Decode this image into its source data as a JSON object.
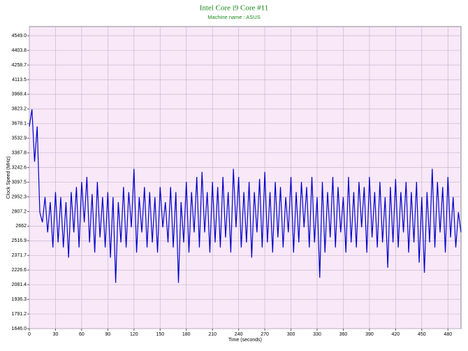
{
  "chart_data": {
    "type": "line",
    "title": "Intel Core i9 Core #11",
    "subtitle": "Machine name : ASUS",
    "x_label": "Time (seconds)",
    "y_label": "Clock Speed (MHz)",
    "xlim": [
      0,
      495
    ],
    "ylim": [
      1646,
      4640
    ],
    "xticks": [
      0,
      30,
      60,
      90,
      120,
      150,
      180,
      210,
      240,
      270,
      300,
      330,
      360,
      390,
      420,
      450,
      480
    ],
    "yticks": [
      {
        "value": 1646,
        "label": "1646.0"
      },
      1791.2,
      1936.3,
      2081.4,
      2226.6,
      2371.7,
      2516.9,
      2662,
      2807.2,
      2952.3,
      3097.5,
      3242.6,
      3387.8,
      3532.9,
      3678.1,
      3823.2,
      3968.4,
      4113.5,
      4258.7,
      4403.8,
      {
        "value": 4549,
        "label": "4549.0"
      }
    ],
    "grid": true,
    "x": [
      0,
      3,
      6,
      9,
      12,
      15,
      18,
      21,
      24,
      27,
      30,
      33,
      36,
      39,
      42,
      45,
      48,
      51,
      54,
      57,
      60,
      63,
      66,
      69,
      72,
      75,
      78,
      81,
      84,
      87,
      90,
      93,
      96,
      99,
      102,
      105,
      108,
      111,
      114,
      117,
      120,
      123,
      126,
      129,
      132,
      135,
      138,
      141,
      144,
      147,
      150,
      153,
      156,
      159,
      162,
      165,
      168,
      171,
      174,
      177,
      180,
      183,
      186,
      189,
      192,
      195,
      198,
      201,
      204,
      207,
      210,
      213,
      216,
      219,
      222,
      225,
      228,
      231,
      234,
      237,
      240,
      243,
      246,
      249,
      252,
      255,
      258,
      261,
      264,
      267,
      270,
      273,
      276,
      279,
      282,
      285,
      288,
      291,
      294,
      297,
      300,
      303,
      306,
      309,
      312,
      315,
      318,
      321,
      324,
      327,
      330,
      333,
      336,
      339,
      342,
      345,
      348,
      351,
      354,
      357,
      360,
      363,
      366,
      369,
      372,
      375,
      378,
      381,
      384,
      387,
      390,
      393,
      396,
      399,
      402,
      405,
      408,
      411,
      414,
      417,
      420,
      423,
      426,
      429,
      432,
      435,
      438,
      441,
      444,
      447,
      450,
      453,
      456,
      459,
      462,
      465,
      468,
      471,
      474,
      477,
      480,
      483,
      486,
      489,
      492,
      495
    ],
    "series": [
      {
        "name": "Clock Speed",
        "color": "#0000c8",
        "values": [
          3650,
          3820,
          3300,
          3650,
          2800,
          2700,
          2950,
          2600,
          2900,
          2450,
          3000,
          2500,
          2950,
          2450,
          2900,
          2350,
          3000,
          2600,
          3050,
          2450,
          3100,
          2700,
          3150,
          2500,
          2980,
          2400,
          3100,
          2550,
          2950,
          2450,
          3000,
          2350,
          2950,
          2100,
          2900,
          2500,
          3050,
          2450,
          3000,
          2650,
          3230,
          2400,
          2950,
          2600,
          3050,
          2450,
          3000,
          2500,
          2950,
          2400,
          3050,
          2650,
          2900,
          2500,
          3050,
          2450,
          3000,
          2100,
          2900,
          2500,
          3100,
          2400,
          3000,
          2600,
          3150,
          2450,
          3200,
          2600,
          3000,
          2400,
          3100,
          2500,
          3050,
          2450,
          3150,
          2550,
          3000,
          2400,
          3230,
          2650,
          3150,
          2450,
          3000,
          2500,
          3100,
          2350,
          3000,
          2600,
          3130,
          2450,
          3200,
          2500,
          3000,
          2400,
          3100,
          2550,
          3050,
          2450,
          2950,
          2600,
          3150,
          2400,
          3000,
          2500,
          3100,
          2650,
          3050,
          2450,
          3150,
          2500,
          2950,
          2150,
          3100,
          2400,
          3000,
          2550,
          3150,
          2450,
          3050,
          2600,
          2950,
          2400,
          3150,
          2500,
          3000,
          2450,
          3100,
          2650,
          3050,
          2400,
          3150,
          2550,
          3000,
          2450,
          3100,
          2500,
          2950,
          2250,
          3050,
          2500,
          3130,
          2450,
          3000,
          2600,
          3100,
          2400,
          3000,
          2500,
          3100,
          2300,
          2950,
          2200,
          3000,
          2500,
          3230,
          2450,
          3100,
          2600,
          3050,
          2400,
          3150,
          2550,
          2950,
          2450,
          2800,
          2600
        ]
      }
    ]
  }
}
